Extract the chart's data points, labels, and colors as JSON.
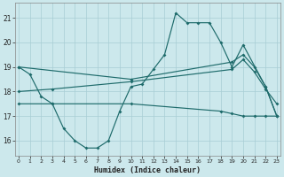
{
  "xlabel": "Humidex (Indice chaleur)",
  "background_color": "#cce8ec",
  "grid_color": "#a8cdd4",
  "line_color": "#1e6b6b",
  "x_ticks": [
    0,
    1,
    2,
    3,
    4,
    5,
    6,
    7,
    8,
    9,
    10,
    11,
    12,
    13,
    14,
    15,
    16,
    17,
    18,
    19,
    20,
    21,
    22,
    23
  ],
  "y_ticks": [
    16,
    17,
    18,
    19,
    20,
    21
  ],
  "xlim": [
    -0.3,
    23.3
  ],
  "ylim": [
    15.4,
    21.6
  ],
  "line1_x": [
    0,
    1,
    2,
    3,
    4,
    5,
    6,
    7,
    8,
    9,
    10,
    11,
    12,
    13,
    14,
    15,
    16,
    17,
    18,
    19,
    20,
    22,
    23
  ],
  "line1_y": [
    19.0,
    18.7,
    17.8,
    17.5,
    16.5,
    16.0,
    15.7,
    15.7,
    16.0,
    17.2,
    18.2,
    18.3,
    18.9,
    19.5,
    21.2,
    20.8,
    20.8,
    20.8,
    20.0,
    19.0,
    19.9,
    18.2,
    17.0
  ],
  "line2_x": [
    0,
    10,
    19,
    20,
    21,
    22,
    23
  ],
  "line2_y": [
    19.0,
    18.5,
    19.2,
    19.5,
    19.0,
    18.2,
    17.0
  ],
  "line3_x": [
    0,
    3,
    10,
    19,
    20,
    21,
    22,
    23
  ],
  "line3_y": [
    18.0,
    18.1,
    18.4,
    18.9,
    19.3,
    18.8,
    18.1,
    17.5
  ],
  "line4_x": [
    0,
    3,
    10,
    18,
    19,
    20,
    21,
    22,
    23
  ],
  "line4_y": [
    17.5,
    17.5,
    17.5,
    17.2,
    17.1,
    17.0,
    17.0,
    17.0,
    17.0
  ]
}
